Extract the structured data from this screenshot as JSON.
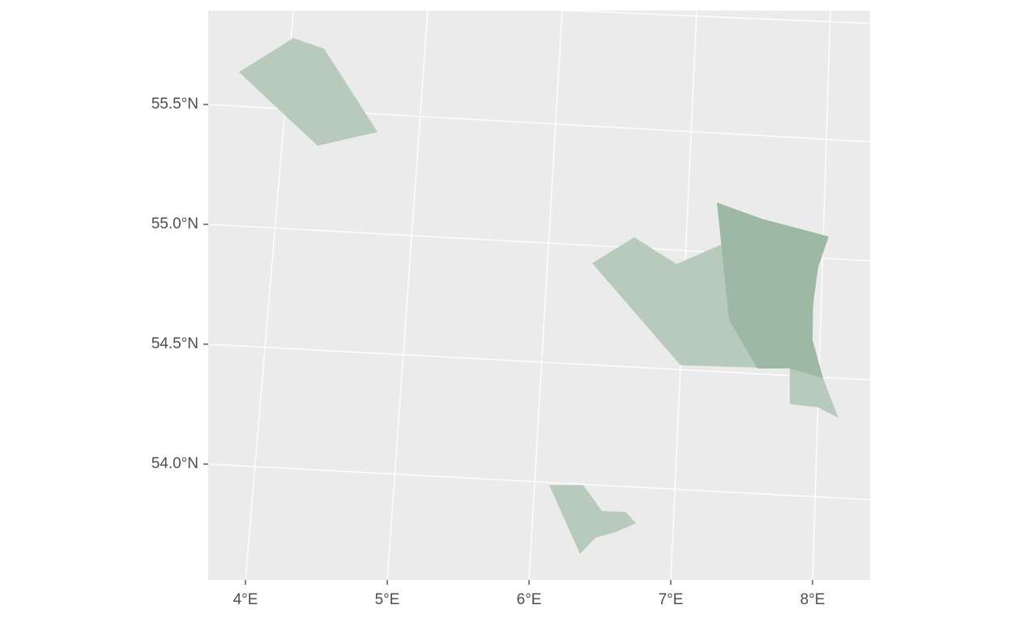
{
  "map": {
    "y_ticks": [
      {
        "value": 55.5,
        "label": "55.5°N"
      },
      {
        "value": 55.0,
        "label": "55.0°N"
      },
      {
        "value": 54.5,
        "label": "54.5°N"
      },
      {
        "value": 54.0,
        "label": "54.0°N"
      }
    ],
    "x_ticks": [
      {
        "value": 4,
        "label": "4°E"
      },
      {
        "value": 5,
        "label": "5°E"
      },
      {
        "value": 6,
        "label": "6°E"
      },
      {
        "value": 7,
        "label": "7°E"
      },
      {
        "value": 8,
        "label": "8°E"
      }
    ]
  }
}
